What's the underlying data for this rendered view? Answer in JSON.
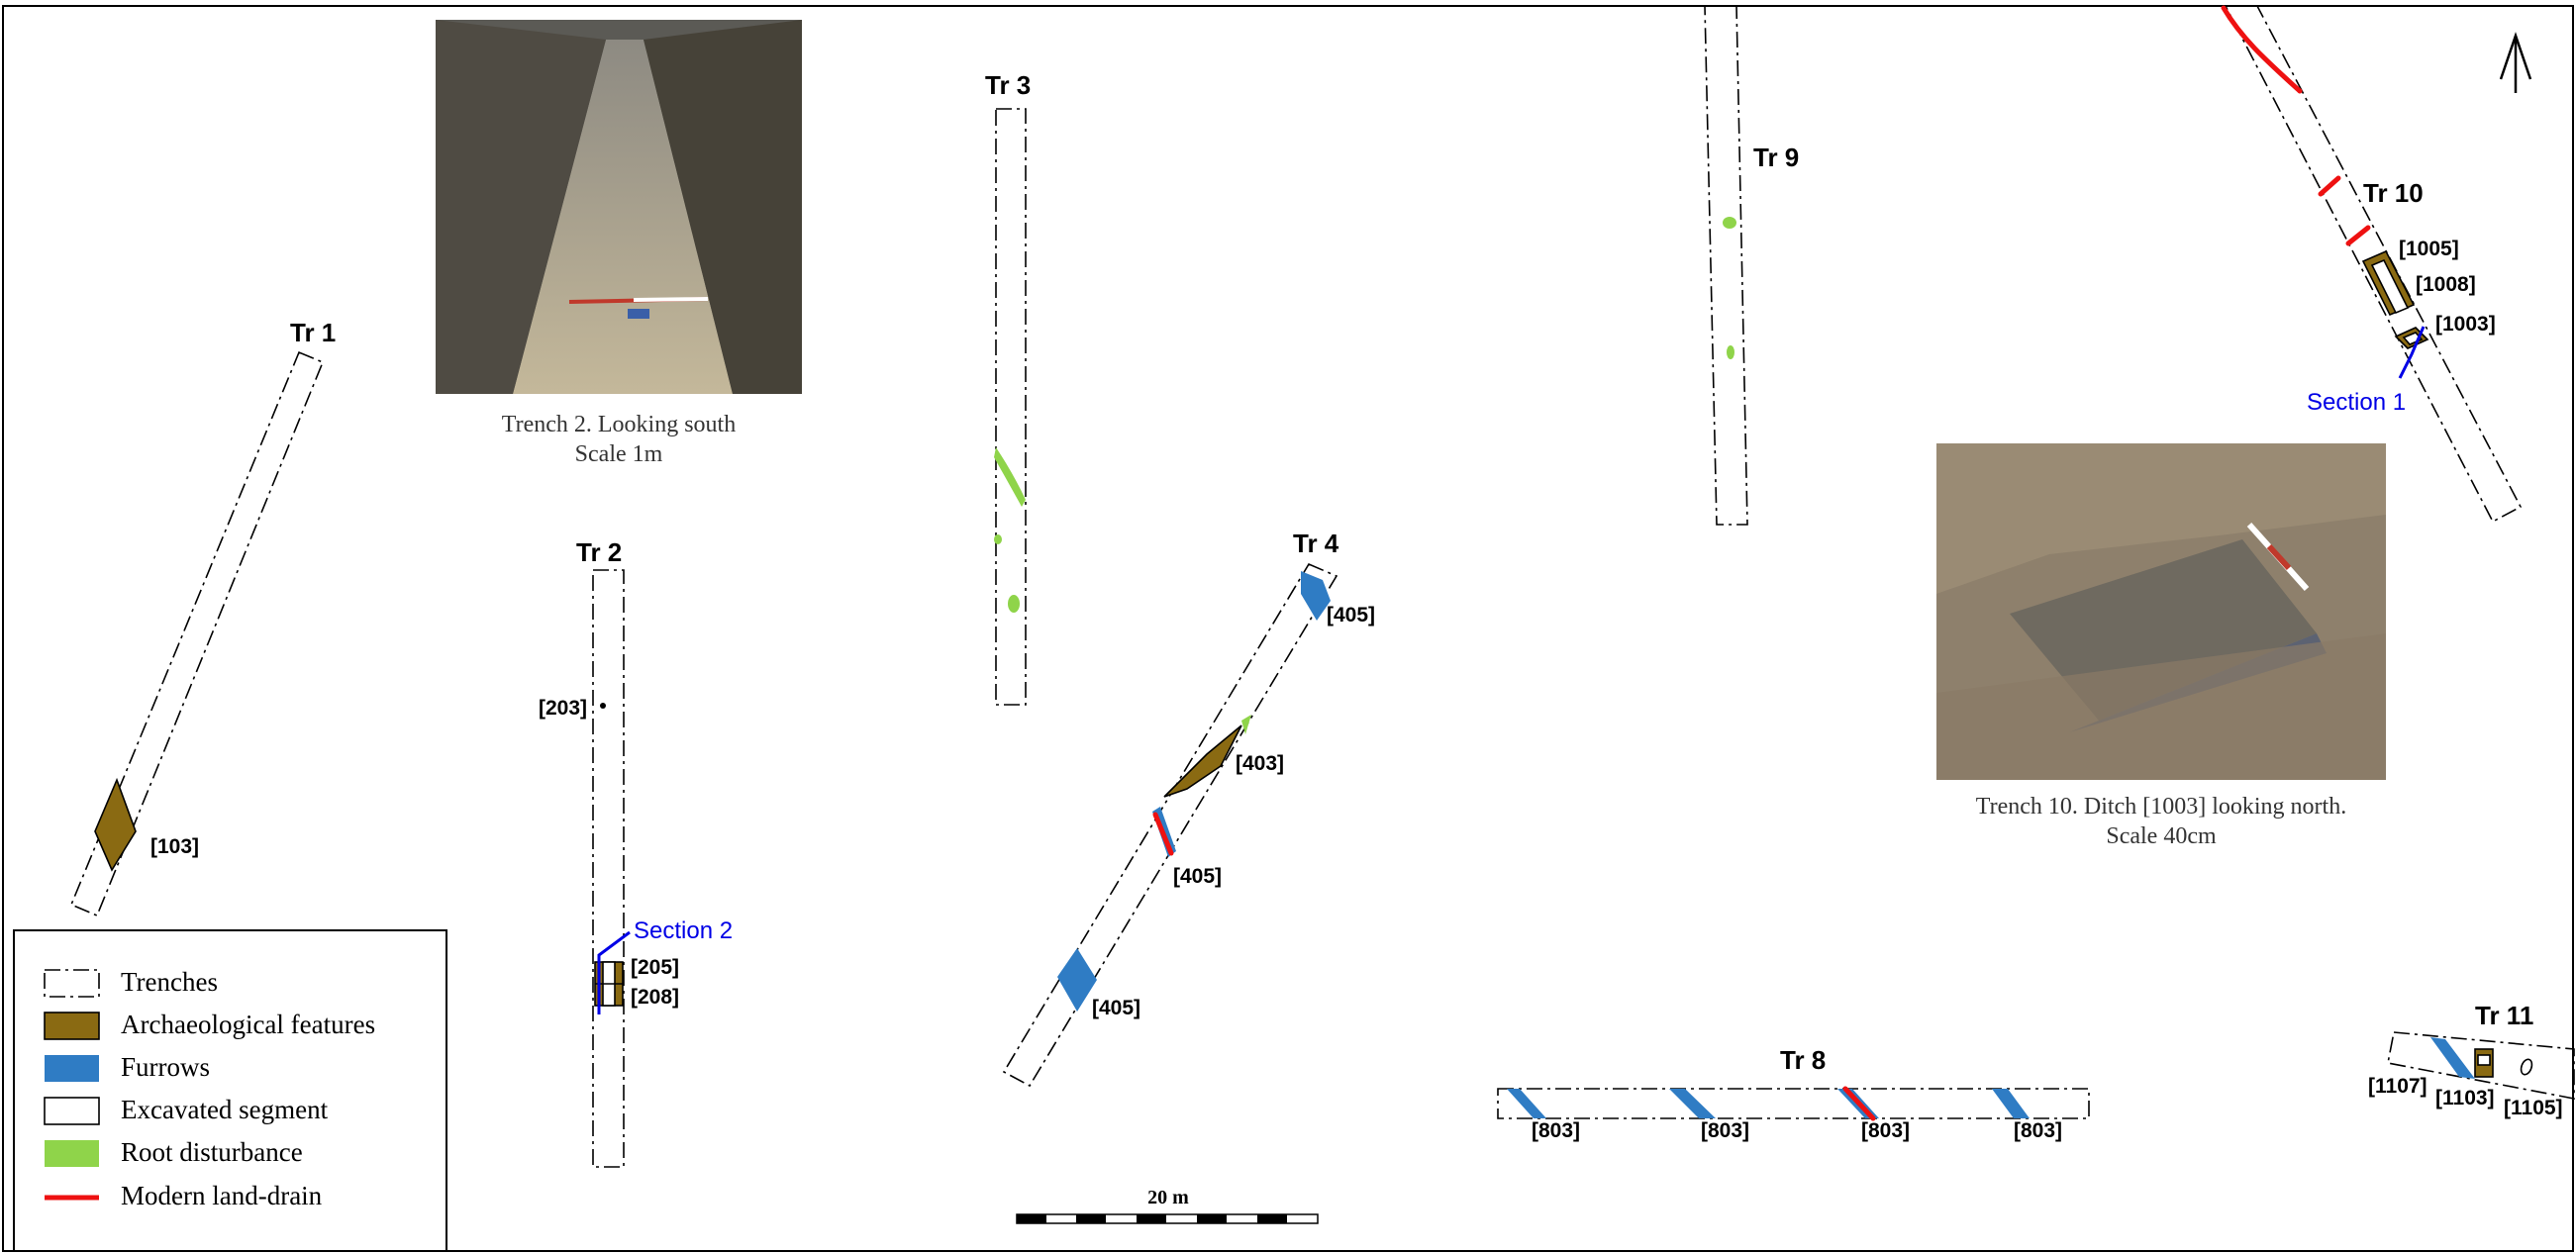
{
  "trenches": {
    "tr1": "Tr 1",
    "tr2": "Tr 2",
    "tr3": "Tr 3",
    "tr4": "Tr 4",
    "tr8": "Tr 8",
    "tr9": "Tr 9",
    "tr10": "Tr 10",
    "tr11": "Tr 11"
  },
  "contexts": {
    "c103": "[103]",
    "c203": "[203]",
    "c205": "[205]",
    "c208": "[208]",
    "c405a": "[405]",
    "c403": "[403]",
    "c405b": "[405]",
    "c405c": "[405]",
    "c803a": "[803]",
    "c803b": "[803]",
    "c803c": "[803]",
    "c803d": "[803]",
    "c1005": "[1005]",
    "c1008": "[1008]",
    "c1003": "[1003]",
    "c1107": "[1107]",
    "c1103": "[1103]",
    "c1105": "[1105]"
  },
  "sections": {
    "s1": "Section 1",
    "s2": "Section 2"
  },
  "photos": {
    "trench2": {
      "caption_line1": "Trench 2. Looking south",
      "caption_line2": "Scale 1m"
    },
    "trench10": {
      "caption_line1": "Trench 10. Ditch [1003] looking north.",
      "caption_line2": "Scale 40cm"
    }
  },
  "scale_bar": {
    "label": "20 m"
  },
  "north_arrow": {
    "icon": "north-arrow-icon"
  },
  "legend": {
    "items": [
      {
        "label": "Trenches",
        "symbol": "trench-outline",
        "color": "#000000"
      },
      {
        "label": "Archaeological features",
        "symbol": "filled-box",
        "color": "#8a6a12"
      },
      {
        "label": "Furrows",
        "symbol": "filled-box",
        "color": "#2f7cc4"
      },
      {
        "label": "Excavated segment",
        "symbol": "outline-box",
        "color": "#000000"
      },
      {
        "label": "Root disturbance",
        "symbol": "filled-box",
        "color": "#8fd44a"
      },
      {
        "label": "Modern land-drain",
        "symbol": "line",
        "color": "#ee1111"
      }
    ]
  }
}
